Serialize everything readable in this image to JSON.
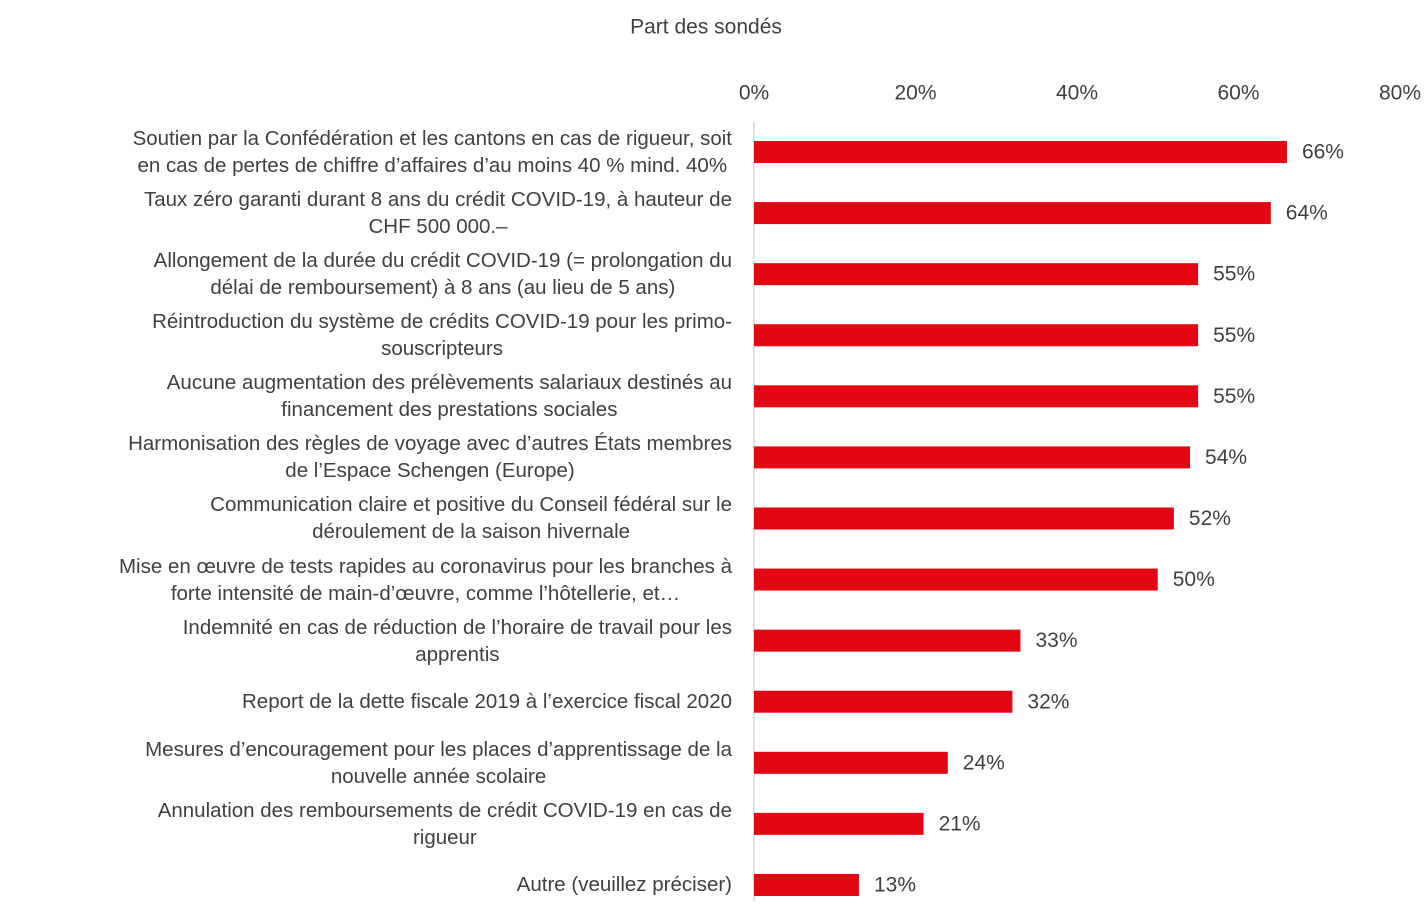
{
  "chart_data": {
    "type": "bar",
    "orientation": "horizontal",
    "x_axis_label": "Part des sondés",
    "categories": [
      "Soutien par la Confédération et les cantons en cas de rigueur, soit\nen cas de pertes de chiffre d’affaires d’au moins 40 % mind. 40%",
      "Taux zéro garanti durant 8 ans du crédit COVID-19, à hauteur de\nCHF 500 000.–",
      "Allongement de la durée du crédit COVID-19 (= prolongation du\ndélai de remboursement) à 8 ans (au lieu de 5 ans)",
      "Réintroduction du système de crédits COVID-19 pour les primo-\nsouscripteurs",
      "Aucune augmentation des prélèvements salariaux destinés au\nfinancement des prestations sociales",
      "Harmonisation des règles de voyage avec d’autres États membres\nde l’Espace Schengen (Europe)",
      "Communication claire et positive du Conseil fédéral sur le\ndéroulement de la saison hivernale",
      "Mise en œuvre de tests rapides au coronavirus pour les branches à\nforte intensité de main-d’œuvre, comme l’hôtellerie, et…",
      "Indemnité en cas de réduction de l’horaire de travail pour les\napprentis",
      "Report de la dette fiscale 2019 à l’exercice fiscal 2020",
      "Mesures d’encouragement pour les places d’apprentissage de la\nnouvelle année scolaire",
      "Annulation des remboursements de crédit COVID-19 en cas de\nrigueur",
      "Autre (veuillez préciser)"
    ],
    "values": [
      66,
      64,
      55,
      55,
      55,
      54,
      52,
      50,
      33,
      32,
      24,
      21,
      13
    ],
    "value_labels": [
      "66%",
      "64%",
      "55%",
      "55%",
      "55%",
      "54%",
      "52%",
      "50%",
      "33%",
      "32%",
      "24%",
      "21%",
      "13%"
    ],
    "color": "#e30613",
    "xlim": [
      0,
      80
    ],
    "xticks": [
      {
        "value": 0,
        "label": "0%"
      },
      {
        "value": 20,
        "label": "20%"
      },
      {
        "value": 40,
        "label": "40%"
      },
      {
        "value": 60,
        "label": "60%"
      },
      {
        "value": 80,
        "label": "80%"
      }
    ]
  }
}
